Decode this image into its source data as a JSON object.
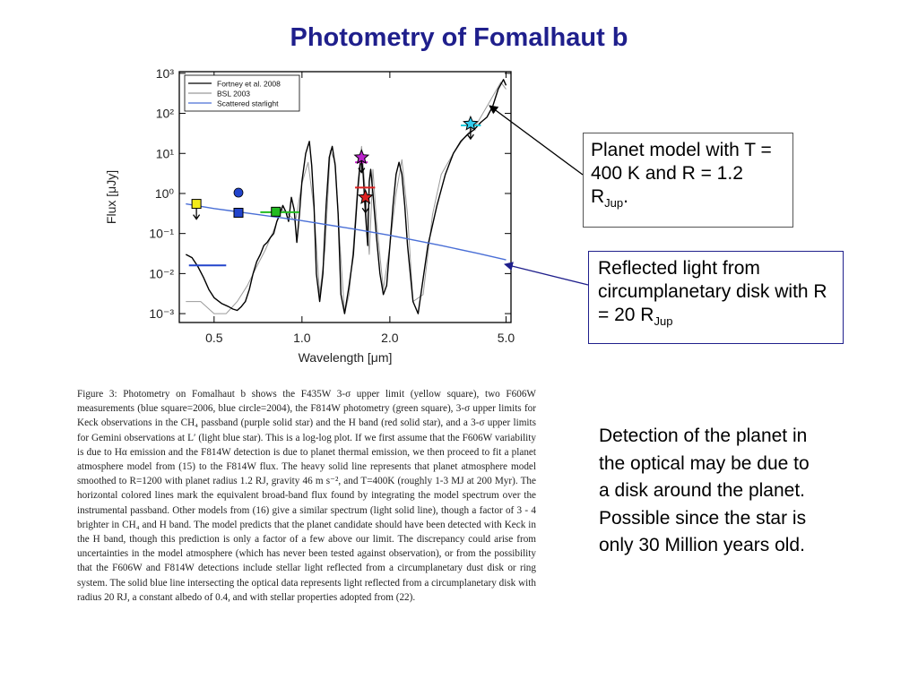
{
  "slide": {
    "title": "Photometry of Fomalhaut b",
    "callout_model": {
      "line1": "Planet model with T = 400 K and R = 1.2 R",
      "sub": "Jup",
      "tail": "."
    },
    "callout_disk": {
      "line1": "Reflected light from circumplanetary disk with R = 20 R",
      "sub": "Jup"
    },
    "detection_text": "Detection of the planet in the optical may be due to a disk around the planet. Possible since the star is only 30 Million years old.",
    "caption": "Figure 3: Photometry on Fomalhaut b shows the F435W 3-σ upper limit (yellow square), two F606W measurements (blue square=2006, blue circle=2004), the F814W photometry (green square), 3-σ upper limits for Keck observations in the CH₄ passband (purple solid star) and the H band (red solid star), and a 3-σ upper limits for Gemini observations at L′ (light blue star). This is a log-log plot. If we first assume that the F606W variability is due to Hα emission and the F814W detection is due to planet thermal emission, we then proceed to fit a planet atmosphere model from (15) to the F814W flux. The heavy solid line represents that planet atmosphere model smoothed to R=1200 with planet radius 1.2 RJ, gravity 46 m s⁻², and T=400K (roughly 1-3 MJ at 200 Myr). The horizontal colored lines mark the equivalent broad-band flux found by integrating the model spectrum over the instrumental passband. Other models from (16) give a similar spectrum (light solid line), though a factor of 3 - 4 brighter in CH₄ and H band. The model predicts that the planet candidate should have been detected with Keck in the H band, though this prediction is only a factor of a few above our limit. The discrepancy could arise from uncertainties in the model atmosphere (which has never been tested against observation), or from the possibility that the F606W and F814W detections include stellar light reflected from a circumplanetary dust disk or ring system. The solid blue line intersecting the optical data represents light reflected from a circumplanetary disk with radius 20 RJ, a constant albedo of 0.4, and with stellar properties adopted from (22)."
  },
  "chart_data": {
    "type": "line",
    "xlabel": "Wavelength [μm]",
    "ylabel": "Flux [μJy]",
    "xscale": "log",
    "yscale": "log",
    "xlim": [
      0.38,
      5.2
    ],
    "ylim": [
      0.0006,
      1100
    ],
    "x_ticks": [
      {
        "v": 0.5,
        "label": "0.5"
      },
      {
        "v": 1.0,
        "label": "1.0"
      },
      {
        "v": 2.0,
        "label": "2.0"
      },
      {
        "v": 5.0,
        "label": "5.0"
      }
    ],
    "y_ticks": [
      {
        "v": 1000,
        "label": "10³"
      },
      {
        "v": 100,
        "label": "10²"
      },
      {
        "v": 10,
        "label": "10¹"
      },
      {
        "v": 1,
        "label": "10⁰"
      },
      {
        "v": 0.1,
        "label": "10⁻¹"
      },
      {
        "v": 0.01,
        "label": "10⁻²"
      },
      {
        "v": 0.001,
        "label": "10⁻³"
      }
    ],
    "legend_placement": "top-left",
    "legend": [
      {
        "label": "Fortney et al. 2008",
        "color": "#000000"
      },
      {
        "label": "BSL 2003",
        "color": "#9a9a9a"
      },
      {
        "label": "Scattered starlight",
        "color": "#4a6fd6"
      }
    ],
    "series": [
      {
        "name": "Fortney et al. 2008",
        "color": "#000000",
        "x": [
          0.4,
          0.42,
          0.44,
          0.46,
          0.48,
          0.5,
          0.53,
          0.56,
          0.58,
          0.6,
          0.62,
          0.64,
          0.66,
          0.68,
          0.7,
          0.72,
          0.74,
          0.76,
          0.78,
          0.8,
          0.82,
          0.84,
          0.86,
          0.88,
          0.9,
          0.92,
          0.94,
          0.96,
          0.98,
          1.0,
          1.03,
          1.06,
          1.08,
          1.1,
          1.12,
          1.15,
          1.18,
          1.21,
          1.24,
          1.27,
          1.3,
          1.33,
          1.36,
          1.4,
          1.45,
          1.5,
          1.55,
          1.58,
          1.6,
          1.62,
          1.65,
          1.68,
          1.7,
          1.72,
          1.75,
          1.8,
          1.85,
          1.9,
          1.95,
          2.0,
          2.05,
          2.1,
          2.15,
          2.2,
          2.25,
          2.3,
          2.4,
          2.5,
          2.7,
          2.9,
          3.1,
          3.3,
          3.5,
          3.7,
          3.9,
          4.1,
          4.3,
          4.5,
          4.7,
          4.9,
          5.0
        ],
        "y": [
          0.03,
          0.025,
          0.015,
          0.008,
          0.004,
          0.0025,
          0.0018,
          0.0015,
          0.0013,
          0.0012,
          0.0015,
          0.002,
          0.004,
          0.01,
          0.02,
          0.03,
          0.05,
          0.06,
          0.08,
          0.1,
          0.2,
          0.3,
          0.5,
          0.35,
          0.2,
          0.8,
          0.4,
          0.06,
          0.3,
          2,
          10,
          20,
          5,
          0.5,
          0.01,
          0.002,
          0.01,
          0.5,
          8,
          15,
          5,
          0.3,
          0.003,
          0.001,
          0.005,
          0.03,
          1,
          5,
          8,
          3,
          0.3,
          0.05,
          2,
          4,
          1,
          0.08,
          0.01,
          0.003,
          0.005,
          0.05,
          0.5,
          3,
          6,
          3,
          0.5,
          0.05,
          0.002,
          0.001,
          0.05,
          0.5,
          3,
          10,
          20,
          30,
          40,
          60,
          80,
          150,
          400,
          700,
          500
        ]
      },
      {
        "name": "BSL 2003",
        "color": "#9a9a9a",
        "x": [
          0.4,
          0.45,
          0.5,
          0.55,
          0.6,
          0.65,
          0.7,
          0.75,
          0.8,
          0.85,
          0.9,
          0.95,
          1.0,
          1.05,
          1.1,
          1.15,
          1.2,
          1.25,
          1.3,
          1.35,
          1.4,
          1.45,
          1.5,
          1.55,
          1.6,
          1.65,
          1.7,
          1.75,
          1.8,
          1.9,
          2.0,
          2.1,
          2.2,
          2.3,
          2.4,
          2.6,
          2.8,
          3.0,
          3.3,
          3.6,
          4.0,
          4.4,
          4.8,
          5.0
        ],
        "y": [
          0.002,
          0.002,
          0.001,
          0.001,
          0.002,
          0.005,
          0.015,
          0.04,
          0.12,
          0.4,
          0.3,
          0.2,
          1.8,
          6,
          0.4,
          0.003,
          0.04,
          12,
          6,
          0.05,
          0.001,
          0.003,
          0.05,
          1.5,
          15,
          1,
          0.03,
          4,
          0.2,
          0.004,
          0.05,
          1,
          7,
          0.3,
          0.002,
          0.003,
          0.3,
          3,
          10,
          25,
          60,
          200,
          600,
          400
        ]
      },
      {
        "name": "Scattered starlight",
        "color": "#4a6fd6",
        "x": [
          0.4,
          0.5,
          0.7,
          1.0,
          1.5,
          2.0,
          3.0,
          4.0,
          5.0
        ],
        "y": [
          0.55,
          0.42,
          0.3,
          0.21,
          0.13,
          0.09,
          0.05,
          0.032,
          0.022
        ]
      }
    ],
    "band_levels": [
      {
        "band": "F435W",
        "color": "#2244cc",
        "x": [
          0.41,
          0.55
        ],
        "y": 0.016
      },
      {
        "band": "F814W",
        "color": "#22bb22",
        "x": [
          0.72,
          0.98
        ],
        "y": 0.34
      },
      {
        "band": "CH4",
        "color": "#cc22cc",
        "x": [
          1.52,
          1.68
        ],
        "y": 6
      },
      {
        "band": "H",
        "color": "#dd2222",
        "x": [
          1.52,
          1.78
        ],
        "y": 1.4
      },
      {
        "band": "L'",
        "color": "#22ccdd",
        "x": [
          3.5,
          4.1
        ],
        "y": 50
      }
    ],
    "points": [
      {
        "label": "F435W upper limit",
        "x": 0.435,
        "y": 0.55,
        "marker": "square",
        "color": "#f2ea1a",
        "upper_limit": true
      },
      {
        "label": "F606W 2006",
        "x": 0.606,
        "y": 0.33,
        "marker": "square",
        "color": "#2244cc",
        "upper_limit": false
      },
      {
        "label": "F606W 2004",
        "x": 0.606,
        "y": 1.05,
        "marker": "circle",
        "color": "#2244cc",
        "upper_limit": false
      },
      {
        "label": "F814W",
        "x": 0.814,
        "y": 0.35,
        "marker": "square",
        "color": "#22bb22",
        "upper_limit": false
      },
      {
        "label": "CH4 upper limit",
        "x": 1.6,
        "y": 8,
        "marker": "star",
        "color": "#bb22cc",
        "upper_limit": true
      },
      {
        "label": "H upper limit",
        "x": 1.65,
        "y": 0.8,
        "marker": "star",
        "color": "#dd2222",
        "upper_limit": true
      },
      {
        "label": "L' upper limit",
        "x": 3.78,
        "y": 55,
        "marker": "star",
        "color": "#33ccee",
        "upper_limit": true
      }
    ]
  }
}
